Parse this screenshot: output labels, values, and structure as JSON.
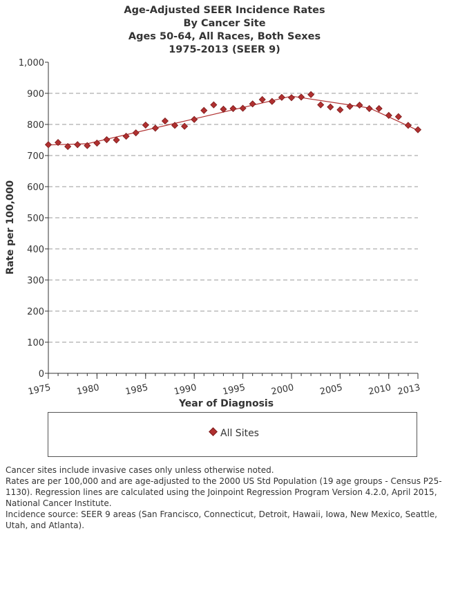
{
  "title_lines": [
    "Age-Adjusted SEER Incidence Rates",
    "By Cancer Site",
    "Ages 50-64, All Races, Both Sexes",
    "1975-2013  (SEER 9)"
  ],
  "legend": {
    "label": "All Sites",
    "position": "bottom"
  },
  "footnotes": [
    "Cancer sites include invasive cases only unless otherwise noted.",
    "Rates are per 100,000 and are age-adjusted to the 2000 US Std Population (19 age groups - Census P25-1130). Regression lines are calculated using the Joinpoint Regression Program Version 4.2.0, April 2015, National Cancer Institute.",
    "Incidence source: SEER 9 areas (San Francisco, Connecticut, Detroit, Hawaii, Iowa, New Mexico, Seattle, Utah, and Atlanta)."
  ],
  "chart_data": {
    "type": "scatter",
    "title": "Age-Adjusted SEER Incidence Rates By Cancer Site Ages 50-64, All Races, Both Sexes 1975-2013 (SEER 9)",
    "xlabel": "Year of Diagnosis",
    "ylabel": "Rate per 100,000",
    "xlim": [
      1975,
      2013
    ],
    "ylim": [
      0,
      1000
    ],
    "x_ticks": [
      1975,
      1980,
      1985,
      1990,
      1995,
      2000,
      2005,
      2010,
      2013
    ],
    "x_tick_labels": [
      "1975",
      "1980",
      "1985",
      "1990",
      "1995",
      "2000",
      "2005",
      "2010",
      "2013"
    ],
    "y_ticks": [
      0,
      100,
      200,
      300,
      400,
      500,
      600,
      700,
      800,
      900,
      1000
    ],
    "y_tick_labels": [
      "0",
      "100",
      "200",
      "300",
      "400",
      "500",
      "600",
      "700",
      "800",
      "900",
      "1,000"
    ],
    "grid": "horizontal dashed",
    "marker_color": "#b03030",
    "line_color": "#b03030",
    "series": [
      {
        "name": "All Sites",
        "x": [
          1975,
          1976,
          1977,
          1978,
          1979,
          1980,
          1981,
          1982,
          1983,
          1984,
          1985,
          1986,
          1987,
          1988,
          1989,
          1990,
          1991,
          1992,
          1993,
          1994,
          1995,
          1996,
          1997,
          1998,
          1999,
          2000,
          2001,
          2002,
          2003,
          2004,
          2005,
          2006,
          2007,
          2008,
          2009,
          2010,
          2011,
          2012,
          2013
        ],
        "y": [
          735,
          742,
          729,
          735,
          732,
          740,
          751,
          750,
          762,
          773,
          798,
          788,
          811,
          797,
          794,
          816,
          845,
          863,
          849,
          851,
          852,
          866,
          880,
          874,
          887,
          886,
          888,
          896,
          863,
          856,
          847,
          858,
          862,
          851,
          851,
          829,
          825,
          797,
          783
        ]
      }
    ],
    "regression_line": {
      "name": "All Sites",
      "x": [
        1975,
        1979,
        1990,
        2000,
        2008,
        2013
      ],
      "y": [
        734,
        738,
        818,
        891,
        853,
        781
      ]
    }
  }
}
